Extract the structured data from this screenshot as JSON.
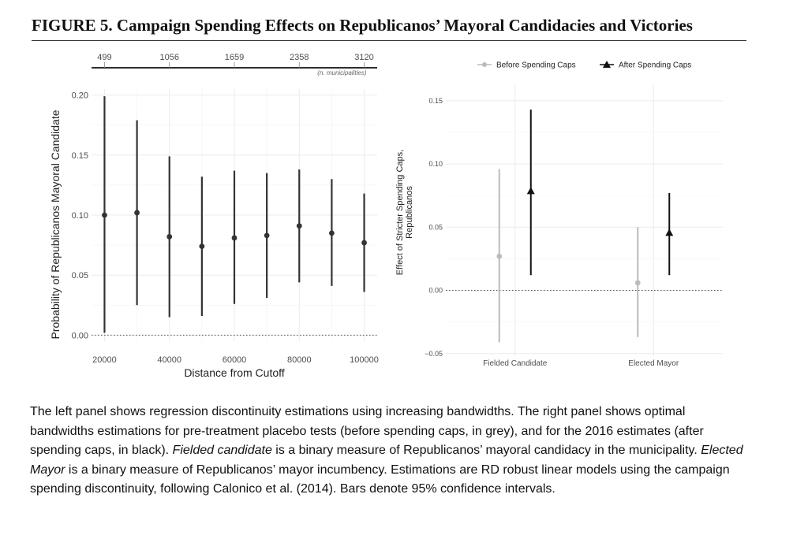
{
  "figure": {
    "title": "FIGURE 5. Campaign Spending Effects on Republicanos’ Mayoral Candidacies and Victories"
  },
  "caption": {
    "part1": " The left panel shows regression discontinuity estimations using increasing bandwidths. The right panel shows optimal bandwidths estimations for pre-treatment placebo tests (before spending caps, in grey), and for the 2016 estimates (after spending caps, in black). ",
    "term1": "Fielded candidate",
    "part2": " is a binary measure of Republicanos’ mayoral candidacy in the municipality. ",
    "term2": "Elected Mayor",
    "part3": " is a binary measure of Republicanos’ mayor incumbency. Estimations are RD robust linear models using the campaign spending discontinuity, following Calonico et al. (2014). Bars denote 95% confidence intervals."
  },
  "chart_data": [
    {
      "type": "scatter",
      "subtype": "point-range",
      "xlabel": "Distance from Cutoff",
      "ylabel": "Probability of Republicanos Mayoral Candidate",
      "xlim": [
        16000,
        104000
      ],
      "ylim": [
        -0.005,
        0.205
      ],
      "x_ticks": [
        20000,
        40000,
        60000,
        80000,
        100000
      ],
      "x_tick_labels": [
        "20000",
        "40000",
        "60000",
        "80000",
        "100000"
      ],
      "y_ticks": [
        0.0,
        0.05,
        0.1,
        0.15,
        0.2
      ],
      "y_tick_labels": [
        "0.00",
        "0.05",
        "0.10",
        "0.15",
        "0.20"
      ],
      "reference_line": 0,
      "grid": true,
      "color": "#333333",
      "points": [
        {
          "x": 20000,
          "y": 0.1,
          "low": 0.002,
          "high": 0.199
        },
        {
          "x": 30000,
          "y": 0.102,
          "low": 0.025,
          "high": 0.179
        },
        {
          "x": 40000,
          "y": 0.082,
          "low": 0.015,
          "high": 0.149
        },
        {
          "x": 50000,
          "y": 0.074,
          "low": 0.016,
          "high": 0.132
        },
        {
          "x": 60000,
          "y": 0.081,
          "low": 0.026,
          "high": 0.137
        },
        {
          "x": 70000,
          "y": 0.083,
          "low": 0.031,
          "high": 0.135
        },
        {
          "x": 80000,
          "y": 0.091,
          "low": 0.044,
          "high": 0.138
        },
        {
          "x": 90000,
          "y": 0.085,
          "low": 0.041,
          "high": 0.13
        },
        {
          "x": 100000,
          "y": 0.077,
          "low": 0.036,
          "high": 0.118
        }
      ],
      "top_axis": {
        "ticks": [
          20000,
          40000,
          60000,
          80000,
          100000
        ],
        "labels": [
          "499",
          "1056",
          "1659",
          "2358",
          "3120"
        ],
        "note": "(n. municipalities)"
      }
    },
    {
      "type": "scatter",
      "subtype": "point-range",
      "ylabel": "Effect of Stricter Spending Caps, Republicanos",
      "ylabel_lines": [
        "Effect of Stricter Spending Caps,",
        "Republicanos"
      ],
      "categories": [
        "Fielded Candidate",
        "Elected Mayor"
      ],
      "ylim": [
        -0.052,
        0.163
      ],
      "y_ticks": [
        -0.05,
        0.0,
        0.05,
        0.1,
        0.15
      ],
      "y_tick_labels": [
        "−0.05",
        "0.00",
        "0.05",
        "0.10",
        "0.15"
      ],
      "reference_line": 0,
      "grid": true,
      "legend_position": "top",
      "series": [
        {
          "name": "Before Spending Caps",
          "color": "#bbbbbb",
          "marker": "circle",
          "values": [
            {
              "y": 0.027,
              "low": -0.041,
              "high": 0.096
            },
            {
              "y": 0.006,
              "low": -0.037,
              "high": 0.05
            }
          ]
        },
        {
          "name": "After Spending Caps",
          "color": "#111111",
          "marker": "triangle",
          "values": [
            {
              "y": 0.078,
              "low": 0.012,
              "high": 0.143
            },
            {
              "y": 0.045,
              "low": 0.012,
              "high": 0.077
            }
          ]
        }
      ]
    }
  ]
}
